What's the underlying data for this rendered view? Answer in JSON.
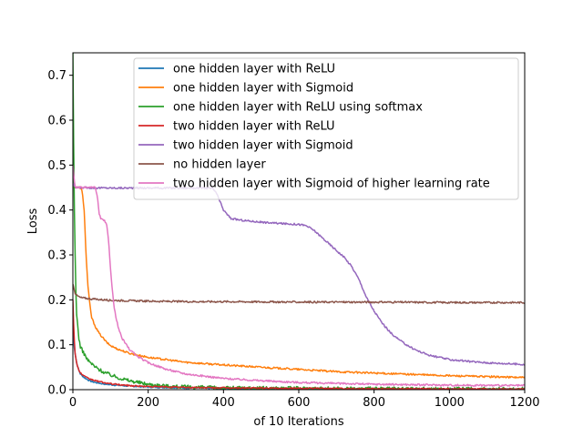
{
  "chart_data": {
    "type": "line",
    "title": "",
    "xlabel": "of 10 Iterations",
    "ylabel": "Loss",
    "xlim": [
      0,
      1200
    ],
    "ylim": [
      0,
      0.75
    ],
    "xticks": [
      0,
      200,
      400,
      600,
      800,
      1000,
      1200
    ],
    "yticks": [
      0.0,
      0.1,
      0.2,
      0.3,
      0.4,
      0.5,
      0.6,
      0.7
    ],
    "xtick_labels": [
      "0",
      "200",
      "400",
      "600",
      "800",
      "1000",
      "1200"
    ],
    "ytick_labels": [
      "0.0",
      "0.1",
      "0.2",
      "0.3",
      "0.4",
      "0.5",
      "0.6",
      "0.7"
    ],
    "grid": false,
    "legend_position": "top-right",
    "series": [
      {
        "name": "one hidden layer with ReLU",
        "color": "#1f77b4",
        "noise": 0.0015,
        "points": [
          [
            0,
            0.14
          ],
          [
            2,
            0.11
          ],
          [
            5,
            0.085
          ],
          [
            10,
            0.06
          ],
          [
            15,
            0.045
          ],
          [
            20,
            0.035
          ],
          [
            30,
            0.027
          ],
          [
            40,
            0.022
          ],
          [
            50,
            0.018
          ],
          [
            60,
            0.016
          ],
          [
            80,
            0.013
          ],
          [
            100,
            0.011
          ],
          [
            150,
            0.008
          ],
          [
            200,
            0.006
          ],
          [
            300,
            0.004
          ],
          [
            400,
            0.003
          ],
          [
            600,
            0.002
          ],
          [
            800,
            0.0015
          ],
          [
            1000,
            0.0012
          ],
          [
            1200,
            0.001
          ]
        ]
      },
      {
        "name": "one hidden layer with Sigmoid",
        "color": "#ff7f0e",
        "noise": 0.002,
        "points": [
          [
            0,
            0.45
          ],
          [
            20,
            0.45
          ],
          [
            25,
            0.44
          ],
          [
            30,
            0.4
          ],
          [
            35,
            0.3
          ],
          [
            40,
            0.23
          ],
          [
            45,
            0.19
          ],
          [
            50,
            0.16
          ],
          [
            60,
            0.14
          ],
          [
            70,
            0.125
          ],
          [
            80,
            0.115
          ],
          [
            90,
            0.105
          ],
          [
            100,
            0.098
          ],
          [
            120,
            0.09
          ],
          [
            150,
            0.081
          ],
          [
            200,
            0.072
          ],
          [
            300,
            0.061
          ],
          [
            400,
            0.055
          ],
          [
            500,
            0.05
          ],
          [
            600,
            0.045
          ],
          [
            700,
            0.04
          ],
          [
            800,
            0.037
          ],
          [
            900,
            0.034
          ],
          [
            1000,
            0.031
          ],
          [
            1100,
            0.029
          ],
          [
            1200,
            0.027
          ]
        ]
      },
      {
        "name": "one hidden layer with ReLU using softmax",
        "color": "#2ca02c",
        "noise": 0.004,
        "points": [
          [
            0,
            0.75
          ],
          [
            2,
            0.55
          ],
          [
            4,
            0.4
          ],
          [
            6,
            0.3
          ],
          [
            8,
            0.22
          ],
          [
            10,
            0.17
          ],
          [
            15,
            0.12
          ],
          [
            20,
            0.095
          ],
          [
            30,
            0.08
          ],
          [
            40,
            0.065
          ],
          [
            60,
            0.05
          ],
          [
            80,
            0.04
          ],
          [
            100,
            0.033
          ],
          [
            120,
            0.027
          ],
          [
            150,
            0.02
          ],
          [
            200,
            0.012
          ],
          [
            250,
            0.008
          ],
          [
            300,
            0.006
          ],
          [
            400,
            0.004
          ],
          [
            600,
            0.003
          ],
          [
            800,
            0.002
          ],
          [
            1000,
            0.0015
          ],
          [
            1200,
            0.001
          ]
        ]
      },
      {
        "name": "two hidden layer with ReLU",
        "color": "#d62728",
        "noise": 0.0015,
        "points": [
          [
            0,
            0.2
          ],
          [
            3,
            0.12
          ],
          [
            6,
            0.08
          ],
          [
            10,
            0.06
          ],
          [
            15,
            0.045
          ],
          [
            20,
            0.037
          ],
          [
            30,
            0.03
          ],
          [
            40,
            0.025
          ],
          [
            60,
            0.02
          ],
          [
            80,
            0.016
          ],
          [
            100,
            0.013
          ],
          [
            150,
            0.009
          ],
          [
            200,
            0.007
          ],
          [
            300,
            0.005
          ],
          [
            400,
            0.004
          ],
          [
            600,
            0.003
          ],
          [
            800,
            0.002
          ],
          [
            1000,
            0.0015
          ],
          [
            1200,
            0.001
          ]
        ]
      },
      {
        "name": "two hidden layer with Sigmoid",
        "color": "#9467bd",
        "noise": 0.002,
        "points": [
          [
            0,
            0.46
          ],
          [
            5,
            0.45
          ],
          [
            100,
            0.449
          ],
          [
            200,
            0.449
          ],
          [
            300,
            0.449
          ],
          [
            350,
            0.449
          ],
          [
            370,
            0.448
          ],
          [
            380,
            0.44
          ],
          [
            390,
            0.42
          ],
          [
            400,
            0.4
          ],
          [
            410,
            0.39
          ],
          [
            420,
            0.381
          ],
          [
            450,
            0.377
          ],
          [
            500,
            0.373
          ],
          [
            550,
            0.37
          ],
          [
            600,
            0.368
          ],
          [
            620,
            0.365
          ],
          [
            640,
            0.355
          ],
          [
            660,
            0.34
          ],
          [
            680,
            0.325
          ],
          [
            700,
            0.31
          ],
          [
            720,
            0.295
          ],
          [
            740,
            0.275
          ],
          [
            760,
            0.245
          ],
          [
            780,
            0.205
          ],
          [
            800,
            0.175
          ],
          [
            820,
            0.15
          ],
          [
            840,
            0.13
          ],
          [
            860,
            0.115
          ],
          [
            880,
            0.103
          ],
          [
            900,
            0.093
          ],
          [
            920,
            0.085
          ],
          [
            950,
            0.076
          ],
          [
            1000,
            0.067
          ],
          [
            1050,
            0.063
          ],
          [
            1100,
            0.06
          ],
          [
            1150,
            0.058
          ],
          [
            1200,
            0.056
          ]
        ]
      },
      {
        "name": "no hidden layer",
        "color": "#8c564b",
        "noise": 0.002,
        "points": [
          [
            0,
            0.235
          ],
          [
            3,
            0.225
          ],
          [
            6,
            0.215
          ],
          [
            10,
            0.21
          ],
          [
            20,
            0.205
          ],
          [
            50,
            0.202
          ],
          [
            100,
            0.199
          ],
          [
            200,
            0.197
          ],
          [
            300,
            0.196
          ],
          [
            400,
            0.196
          ],
          [
            600,
            0.195
          ],
          [
            800,
            0.195
          ],
          [
            1000,
            0.194
          ],
          [
            1200,
            0.194
          ]
        ]
      },
      {
        "name": "two hidden layer with Sigmoid of higher learning rate",
        "color": "#e377c2",
        "noise": 0.002,
        "points": [
          [
            0,
            0.5
          ],
          [
            5,
            0.455
          ],
          [
            10,
            0.45
          ],
          [
            60,
            0.45
          ],
          [
            65,
            0.43
          ],
          [
            70,
            0.39
          ],
          [
            75,
            0.38
          ],
          [
            85,
            0.375
          ],
          [
            90,
            0.365
          ],
          [
            95,
            0.33
          ],
          [
            100,
            0.27
          ],
          [
            105,
            0.22
          ],
          [
            110,
            0.18
          ],
          [
            120,
            0.14
          ],
          [
            130,
            0.115
          ],
          [
            150,
            0.09
          ],
          [
            170,
            0.075
          ],
          [
            200,
            0.06
          ],
          [
            250,
            0.045
          ],
          [
            300,
            0.035
          ],
          [
            400,
            0.025
          ],
          [
            500,
            0.02
          ],
          [
            600,
            0.016
          ],
          [
            700,
            0.014
          ],
          [
            800,
            0.012
          ],
          [
            900,
            0.011
          ],
          [
            1000,
            0.01
          ],
          [
            1100,
            0.0095
          ],
          [
            1200,
            0.009
          ]
        ]
      }
    ]
  }
}
